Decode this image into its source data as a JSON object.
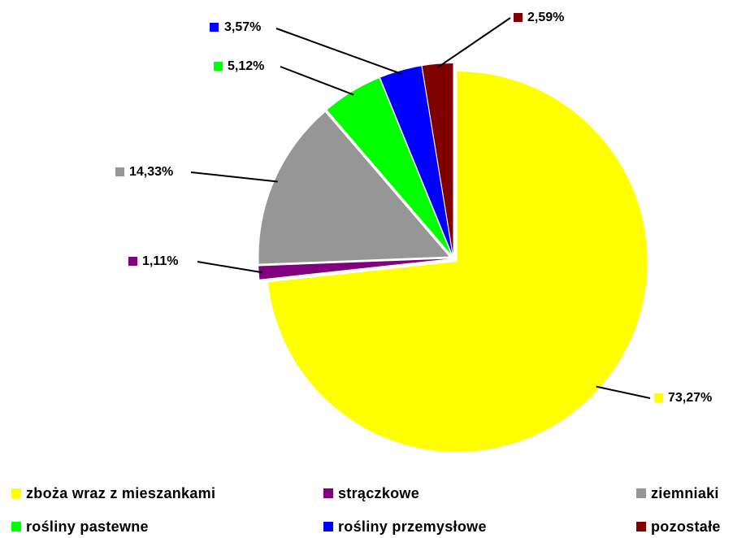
{
  "chart_data": {
    "type": "pie",
    "categories": [
      "zboża wraz z mieszankami",
      "strączkowe",
      "ziemniaki",
      "rośliny pastewne",
      "rośliny przemysłowe",
      "pozostałe"
    ],
    "values": [
      73.27,
      1.11,
      14.33,
      5.12,
      3.57,
      2.59
    ],
    "value_labels": [
      "73,27%",
      "1,11%",
      "14,33%",
      "5,12%",
      "3,57%",
      "2,59%"
    ],
    "colors": [
      "#ffff00",
      "#800080",
      "#969696",
      "#00ff00",
      "#0000ff",
      "#800000"
    ],
    "legend": "bottom"
  }
}
